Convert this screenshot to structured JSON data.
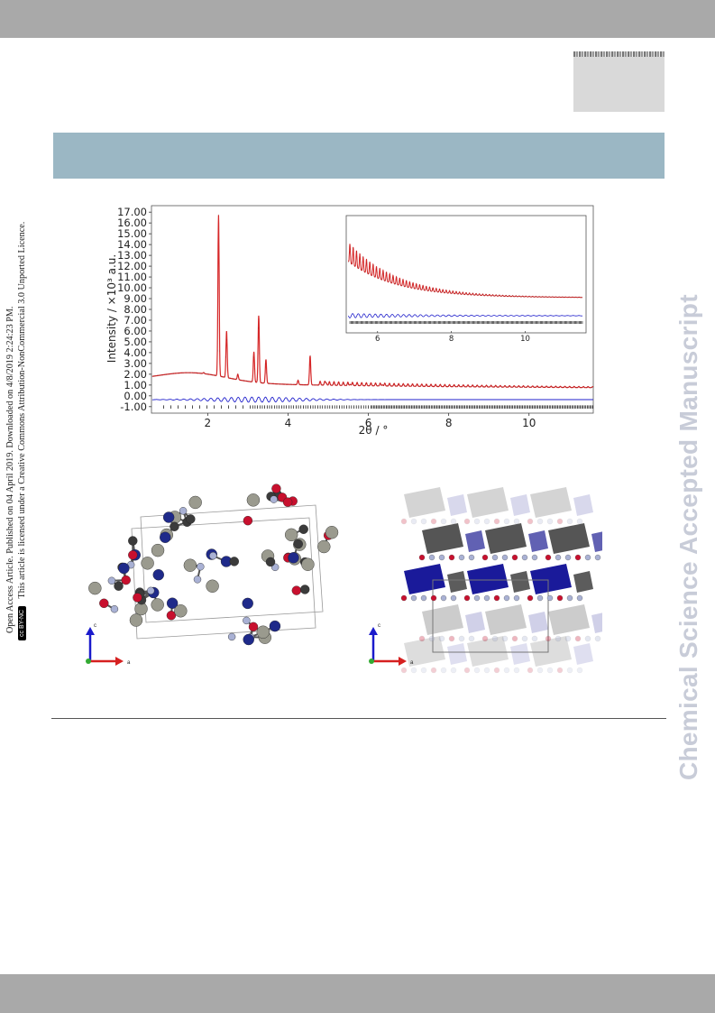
{
  "sidebar": {
    "line1": "Open Access Article. Published on 04 April 2019. Downloaded on 4/8/2019 2:24:23 PM.",
    "line2": "This article is licensed under a Creative Commons Attribution-NonCommercial 3.0 Unported Licence.",
    "badge": "cc BY-NC"
  },
  "watermark": "Chemical Science Accepted Manuscript",
  "chart_data": {
    "type": "line",
    "xlabel": "2θ / °",
    "ylabel": "Intensity / ×10³ a.u.",
    "xlim": [
      0.6,
      11.6
    ],
    "ylim": [
      -1.6,
      17.6
    ],
    "x_ticks": [
      "2",
      "4",
      "6",
      "8",
      "10"
    ],
    "y_ticks": [
      "-1.00",
      "0.00",
      "1.00",
      "2.00",
      "3.00",
      "4.00",
      "5.00",
      "6.00",
      "7.00",
      "8.00",
      "9.00",
      "10.00",
      "11.00",
      "12.00",
      "13.00",
      "14.00",
      "15.00",
      "16.00",
      "17.00"
    ],
    "peaks": [
      {
        "x": 1.9,
        "y": 2.0
      },
      {
        "x": 2.27,
        "y": 16.8
      },
      {
        "x": 2.47,
        "y": 6.2
      },
      {
        "x": 2.75,
        "y": 2.4
      },
      {
        "x": 3.15,
        "y": 4.7
      },
      {
        "x": 3.27,
        "y": 8.1
      },
      {
        "x": 3.45,
        "y": 4.1
      },
      {
        "x": 4.25,
        "y": 2.3
      },
      {
        "x": 4.55,
        "y": 4.6
      },
      {
        "x": 4.95,
        "y": 2.1
      },
      {
        "x": 5.55,
        "y": 2.0
      },
      {
        "x": 6.35,
        "y": 1.8
      }
    ],
    "inset": {
      "x_ticks": [
        "6",
        "8",
        "10"
      ],
      "xlim": [
        5.2,
        11.6
      ]
    }
  },
  "structure_left_axes": {
    "vertical": "c",
    "horizontal": "a"
  },
  "structure_right_axes": {
    "vertical": "c",
    "horizontal": "a"
  },
  "colors": {
    "calc": "#d62728",
    "diff": "#2222cc",
    "obs": "#000000",
    "header": "#9bb7c4"
  }
}
